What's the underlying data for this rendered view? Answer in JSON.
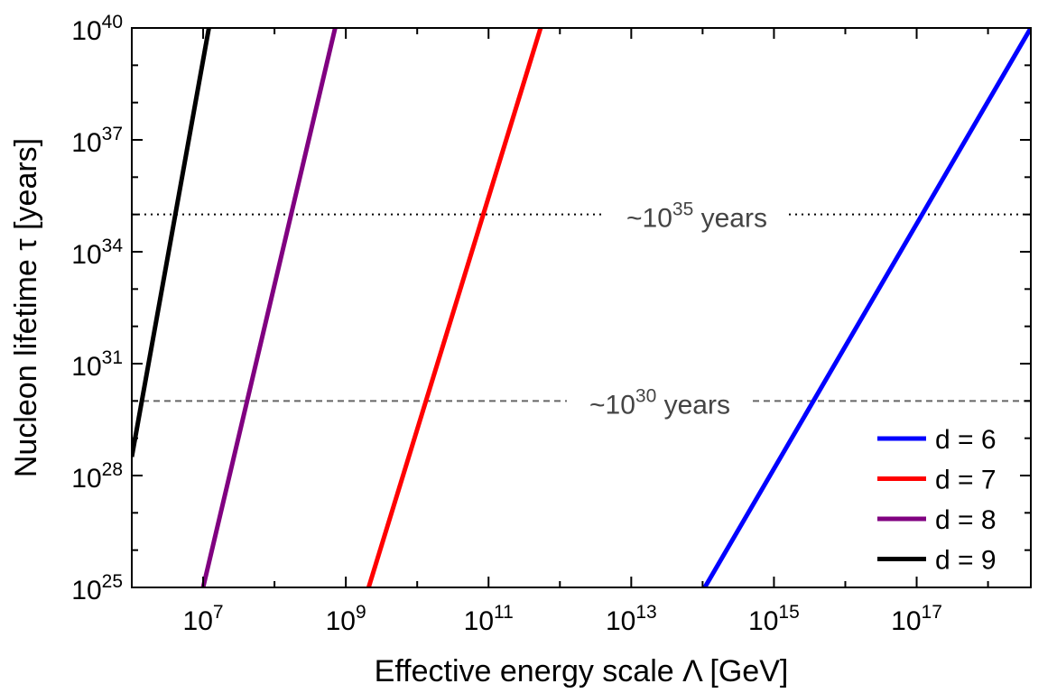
{
  "chart_data": {
    "type": "line",
    "title": "",
    "xlabel": "Effective energy scale Λ [GeV]",
    "ylabel": "Nucleon lifetime τ [years]",
    "x_scale": "log",
    "y_scale": "log",
    "xlim_exp": [
      6,
      18.6
    ],
    "ylim_exp": [
      25,
      40
    ],
    "grid": false,
    "x_ticks": [
      {
        "base": "10",
        "exp": "7"
      },
      {
        "base": "10",
        "exp": "9"
      },
      {
        "base": "10",
        "exp": "11"
      },
      {
        "base": "10",
        "exp": "13"
      },
      {
        "base": "10",
        "exp": "15"
      },
      {
        "base": "10",
        "exp": "17"
      }
    ],
    "y_ticks": [
      {
        "base": "10",
        "exp": "25"
      },
      {
        "base": "10",
        "exp": "28"
      },
      {
        "base": "10",
        "exp": "31"
      },
      {
        "base": "10",
        "exp": "34"
      },
      {
        "base": "10",
        "exp": "37"
      },
      {
        "base": "10",
        "exp": "40"
      }
    ],
    "series": [
      {
        "name": "d = 6",
        "color": "#0000ff",
        "x_exp": [
          14.03,
          18.6
        ],
        "y_exp": [
          25,
          40
        ]
      },
      {
        "name": "d = 7",
        "color": "#ff0000",
        "x_exp": [
          9.32,
          11.73
        ],
        "y_exp": [
          25,
          40
        ]
      },
      {
        "name": "d = 8",
        "color": "#800080",
        "x_exp": [
          7.0,
          8.85
        ],
        "y_exp": [
          25,
          40
        ]
      },
      {
        "name": "d = 9",
        "color": "#000000",
        "x_exp": [
          6.0,
          7.08
        ],
        "y_exp": [
          28.5,
          40
        ]
      }
    ],
    "reference_lines": [
      {
        "y_exp": 35,
        "style": "dotted",
        "label_prefix": "~10",
        "label_exp": "35",
        "label_suffix": " years"
      },
      {
        "y_exp": 30,
        "style": "dashed",
        "label_prefix": "~10",
        "label_exp": "30",
        "label_suffix": " years"
      }
    ],
    "legend_position": "bottom-right"
  }
}
